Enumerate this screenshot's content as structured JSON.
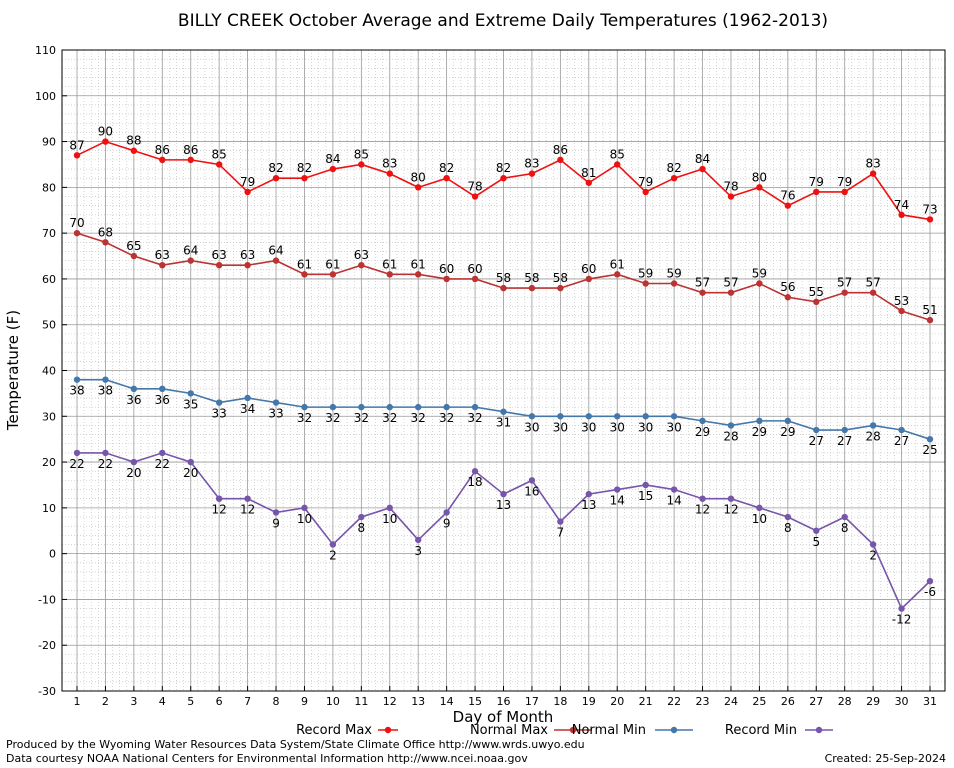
{
  "chart_data": {
    "type": "line",
    "title": "BILLY CREEK October Average and Extreme Daily Temperatures (1962-2013)",
    "xlabel": "Day of Month",
    "ylabel": "Temperature (F)",
    "ylim": [
      -30,
      110
    ],
    "xlim": [
      1,
      31
    ],
    "grid": true,
    "legend_position": "bottom",
    "x": [
      1,
      2,
      3,
      4,
      5,
      6,
      7,
      8,
      9,
      10,
      11,
      12,
      13,
      14,
      15,
      16,
      17,
      18,
      19,
      20,
      21,
      22,
      23,
      24,
      25,
      26,
      27,
      28,
      29,
      30,
      31
    ],
    "x_tick_labels": [
      "1",
      "2",
      "3",
      "4",
      "5",
      "6",
      "7",
      "8",
      "9",
      "10",
      "11",
      "12",
      "13",
      "14",
      "15",
      "16",
      "17",
      "18",
      "19",
      "20",
      "21",
      "22",
      "23",
      "24",
      "25",
      "26",
      "27",
      "28",
      "29",
      "30",
      "31"
    ],
    "y_tick_labels": [
      "-30",
      "-20",
      "-10",
      "0",
      "10",
      "20",
      "30",
      "40",
      "50",
      "60",
      "70",
      "80",
      "90",
      "100",
      "110"
    ],
    "series": [
      {
        "name": "Record Max",
        "color": "#ee1111",
        "label_pos": "above",
        "values": [
          87,
          90,
          88,
          86,
          86,
          85,
          79,
          82,
          82,
          84,
          85,
          83,
          80,
          82,
          78,
          82,
          83,
          86,
          81,
          85,
          79,
          82,
          84,
          78,
          80,
          76,
          79,
          79,
          83,
          74,
          73
        ]
      },
      {
        "name": "Normal Max",
        "color": "#bb3333",
        "label_pos": "above",
        "values": [
          70,
          68,
          65,
          63,
          64,
          63,
          63,
          64,
          61,
          61,
          63,
          61,
          61,
          60,
          60,
          58,
          58,
          58,
          60,
          61,
          59,
          59,
          57,
          57,
          59,
          56,
          55,
          57,
          57,
          53,
          51
        ]
      },
      {
        "name": "Normal Min",
        "color": "#4477aa",
        "label_pos": "below",
        "values": [
          38,
          38,
          36,
          36,
          35,
          33,
          34,
          33,
          32,
          32,
          32,
          32,
          32,
          32,
          32,
          31,
          30,
          30,
          30,
          30,
          30,
          30,
          29,
          28,
          29,
          29,
          27,
          27,
          28,
          27,
          25
        ]
      },
      {
        "name": "Record Min",
        "color": "#7755aa",
        "label_pos": "below",
        "values": [
          22,
          22,
          20,
          22,
          20,
          12,
          12,
          9,
          10,
          2,
          8,
          10,
          3,
          9,
          18,
          13,
          16,
          7,
          13,
          14,
          15,
          14,
          12,
          12,
          10,
          8,
          5,
          8,
          2,
          -12,
          -6
        ]
      }
    ]
  },
  "footer": {
    "produced_by": "Produced by the Wyoming Water Resources Data System/State Climate Office http://www.wrds.uwyo.edu",
    "courtesy": "Data courtesy NOAA National Centers for Environmental Information http://www.ncei.noaa.gov",
    "created": "Created:  25-Sep-2024"
  }
}
